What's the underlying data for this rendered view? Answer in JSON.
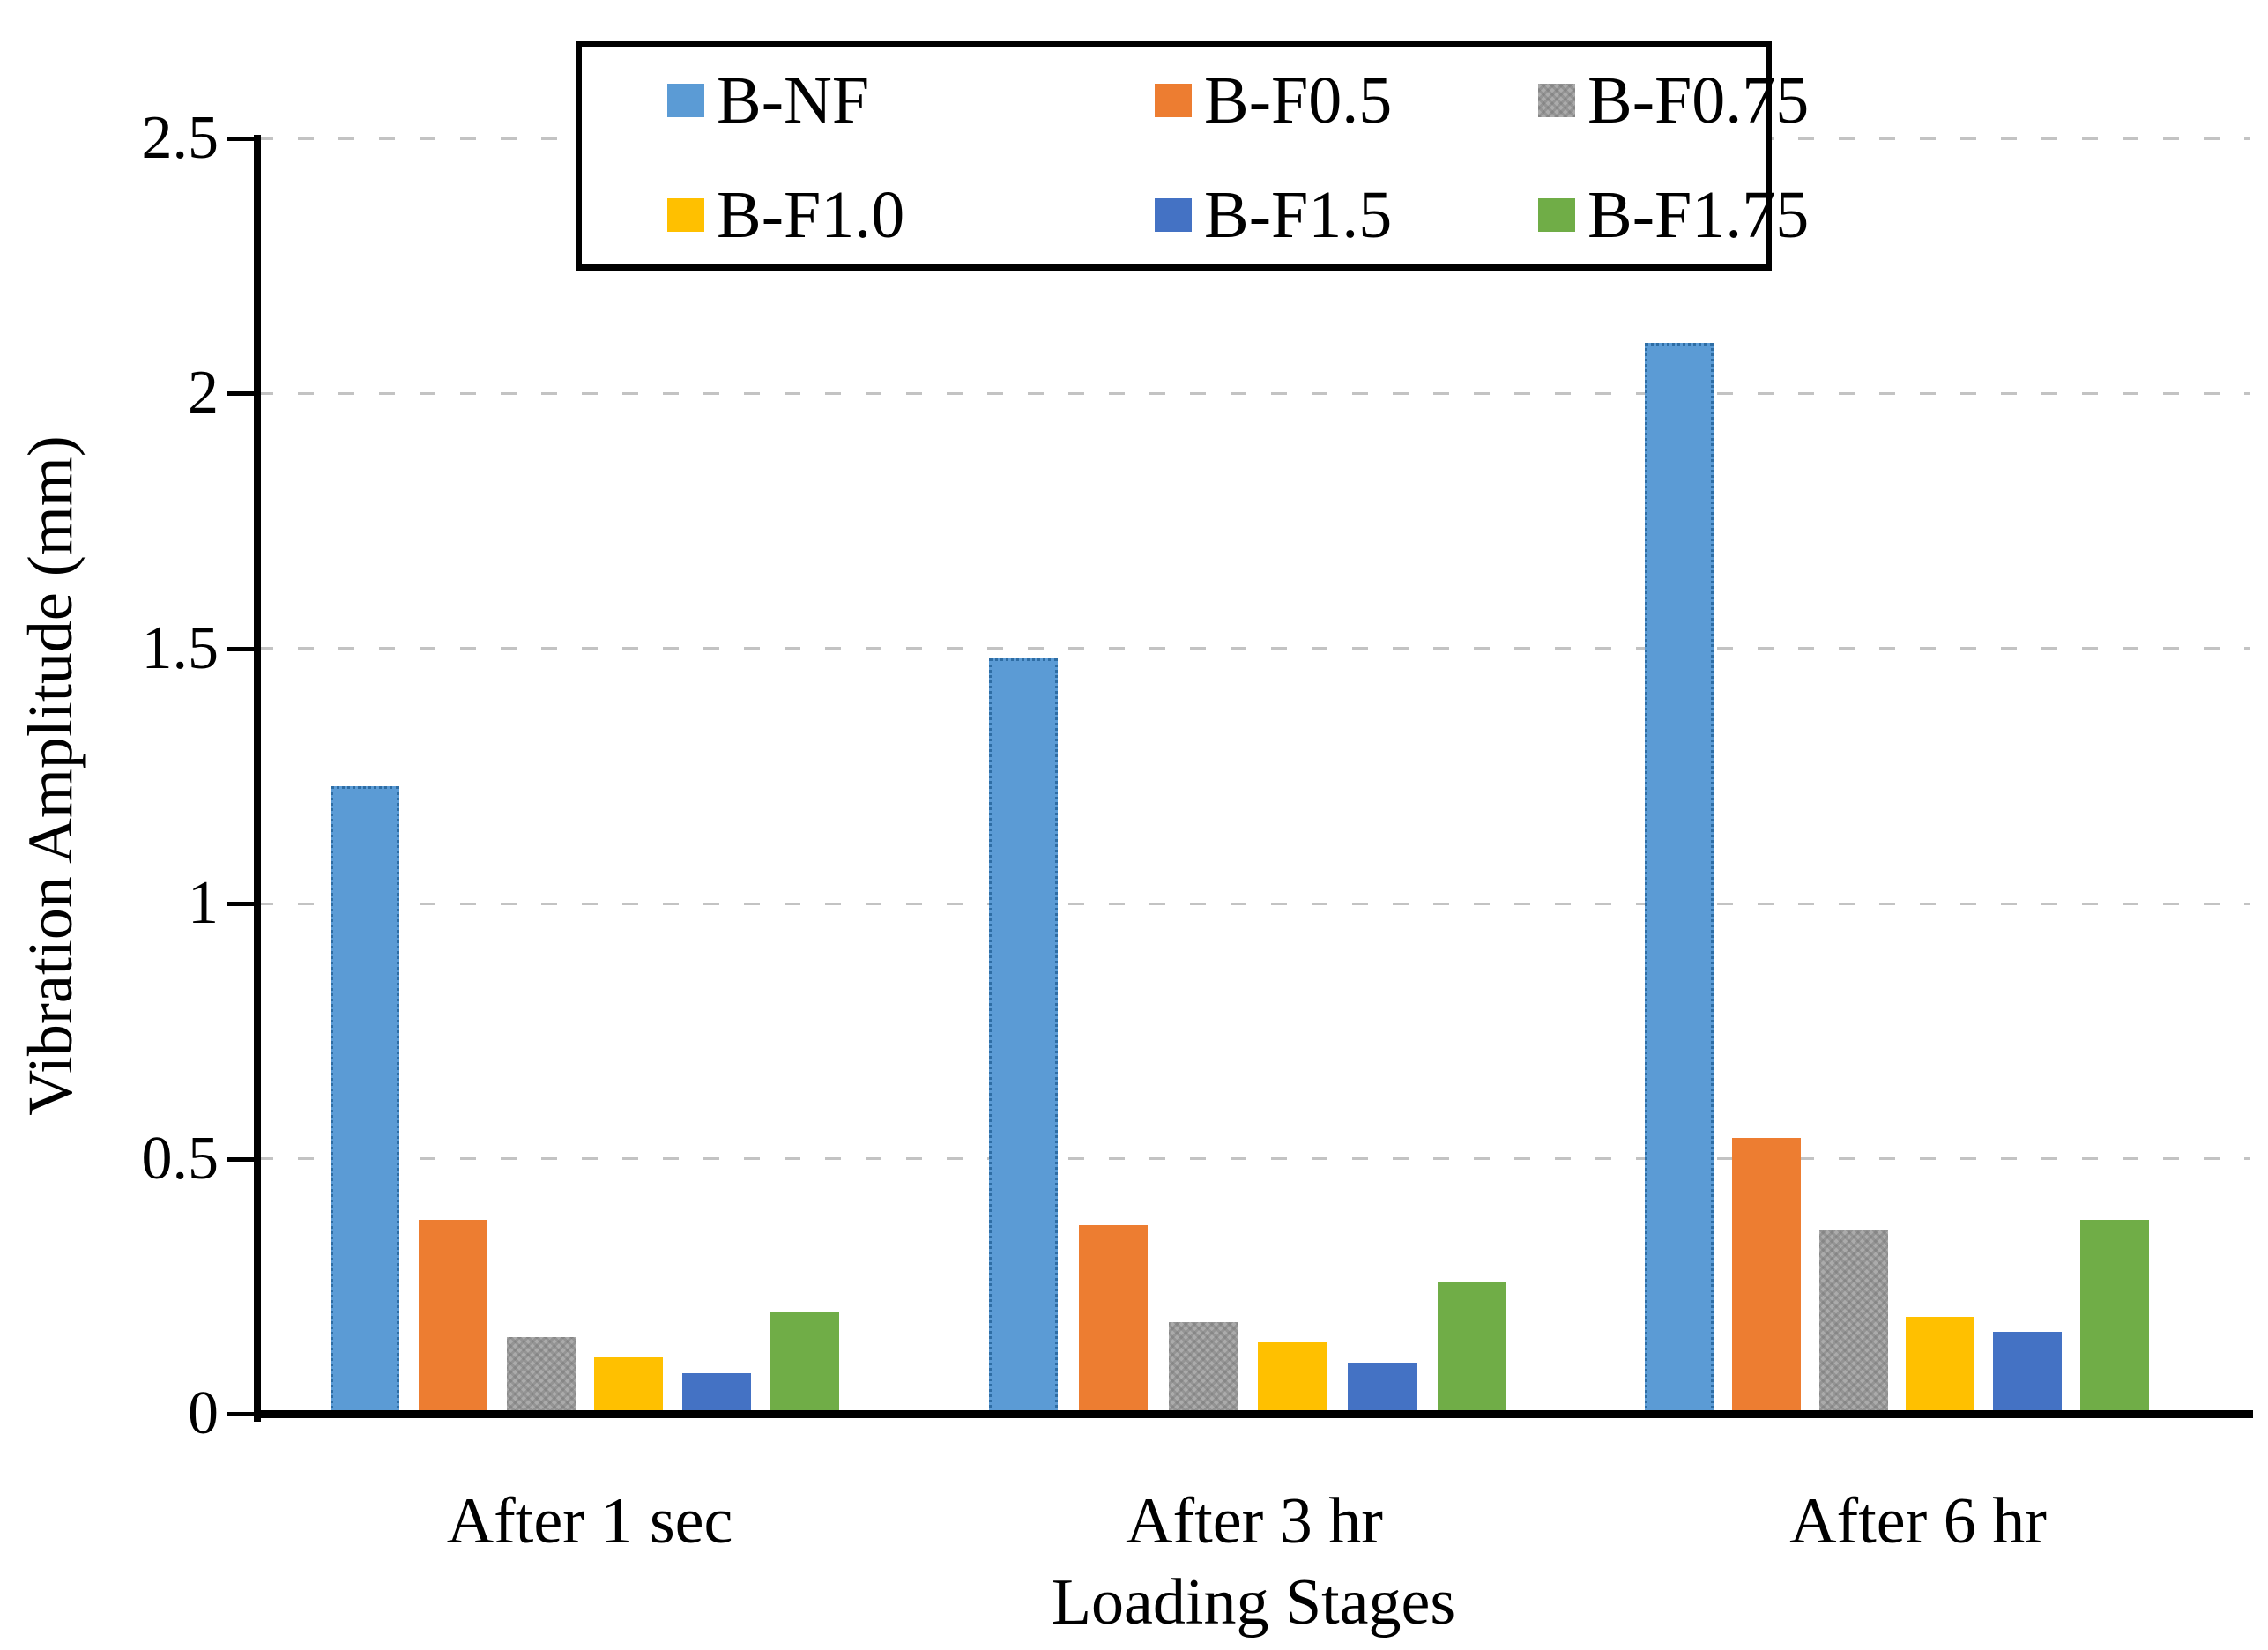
{
  "chart_data": {
    "type": "bar",
    "title": "",
    "categories": [
      "After 1 sec",
      "After 3 hr",
      "After 6 hr"
    ],
    "series": [
      {
        "name": "B-NF",
        "color": "#5B9BD5",
        "values": [
          1.23,
          1.48,
          2.1
        ]
      },
      {
        "name": "B-F0.5",
        "color": "#ED7D31",
        "values": [
          0.38,
          0.37,
          0.54
        ]
      },
      {
        "name": "B-F0.75",
        "color": "#A6A6A6",
        "values": [
          0.15,
          0.18,
          0.36
        ]
      },
      {
        "name": "B-F1.0",
        "color": "#FFC000",
        "values": [
          0.11,
          0.14,
          0.19
        ]
      },
      {
        "name": "B-F1.5",
        "color": "#4472C4",
        "values": [
          0.08,
          0.1,
          0.16
        ]
      },
      {
        "name": "B-F1.75",
        "color": "#70AD47",
        "values": [
          0.2,
          0.26,
          0.38
        ]
      }
    ],
    "xlabel": "Loading Stages",
    "ylabel": "Vibration Amplitude (mm)",
    "ylim": [
      0,
      2.5
    ],
    "yticks": [
      0,
      0.5,
      1,
      1.5,
      2,
      2.5
    ],
    "ytick_labels": [
      "0",
      "0.5",
      "1",
      "1.5",
      "2",
      "2.5"
    ],
    "grid": "horizontal-dashed",
    "gridline_color": "#C3C3C3",
    "axis_color": "#000000",
    "legend_position": "top-center",
    "legend_border": "#000000"
  }
}
